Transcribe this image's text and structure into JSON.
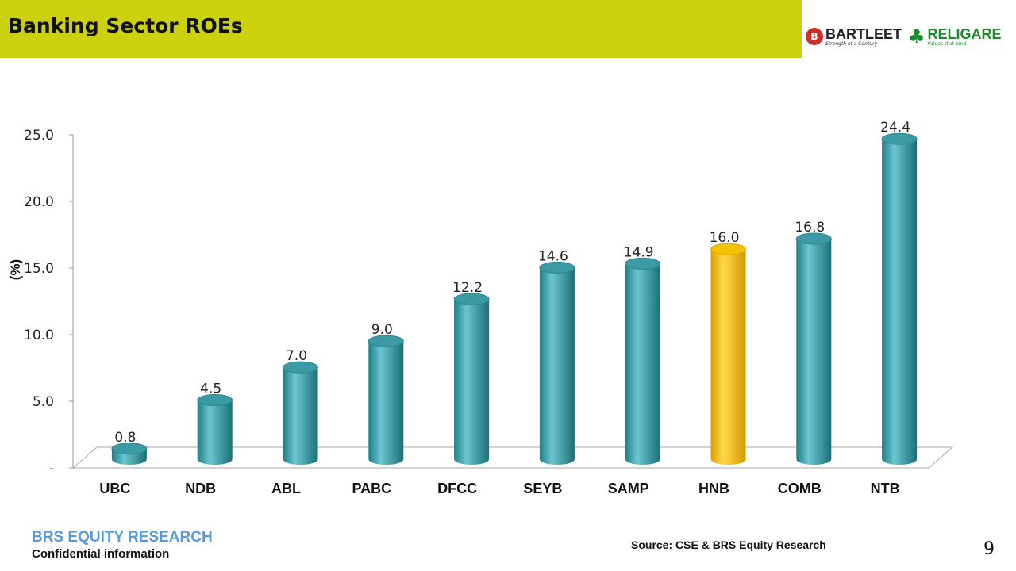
{
  "header": {
    "title": "Banking Sector ROEs"
  },
  "logos": {
    "bartleet": {
      "name": "BARTLEET",
      "tagline": "Strength of a Century",
      "mark": "B"
    },
    "religare": {
      "name": "RELIGARE",
      "tagline": "Values that bind"
    }
  },
  "chart_data": {
    "type": "bar",
    "categories": [
      "UBC",
      "NDB",
      "ABL",
      "PABC",
      "DFCC",
      "SEYB",
      "SAMP",
      "HNB",
      "COMB",
      "NTB"
    ],
    "values": [
      0.8,
      4.5,
      7.0,
      9.0,
      12.2,
      14.6,
      14.9,
      16.0,
      16.8,
      24.4
    ],
    "data_labels": [
      "0.8",
      "4.5",
      "7.0",
      "9.0",
      "12.2",
      "14.6",
      "14.9",
      "16.0",
      "16.8",
      "24.4"
    ],
    "ylabel": "(%)",
    "ylim": [
      0,
      25
    ],
    "yticks": [
      "-",
      "5.0",
      "10.0",
      "15.0",
      "20.0",
      "25.0"
    ],
    "grid": false,
    "style": "3d-cylinder",
    "colors": {
      "default": "#3aa3ad",
      "highlight": "#f5c000"
    },
    "highlight_category": "HNB"
  },
  "footer": {
    "brand": "BRS EQUITY RESEARCH",
    "confidential": "Confidential information",
    "source": "Source: CSE & BRS Equity Research",
    "page": "9"
  }
}
